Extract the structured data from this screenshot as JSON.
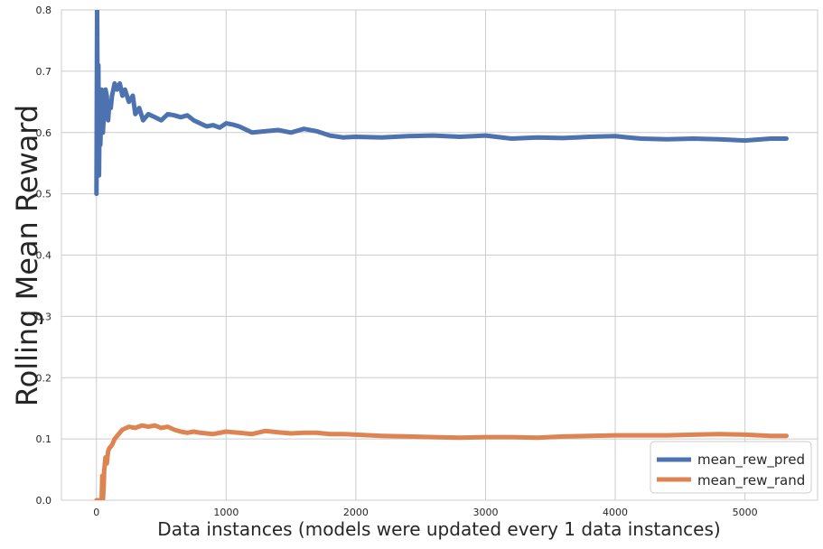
{
  "chart_data": {
    "type": "line",
    "title": "",
    "xlabel": "Data instances (models were updated every 1 data instances)",
    "ylabel": "Rolling Mean Reward",
    "xlim": [
      -270,
      5560
    ],
    "ylim": [
      0.0,
      0.8
    ],
    "x_ticks": [
      0,
      1000,
      2000,
      3000,
      4000,
      5000
    ],
    "y_ticks": [
      0.0,
      0.1,
      0.2,
      0.3,
      0.4,
      0.5,
      0.6,
      0.7,
      0.8
    ],
    "x_tick_labels": [
      "0",
      "1000",
      "2000",
      "3000",
      "4000",
      "5000"
    ],
    "y_tick_labels": [
      "0.0",
      "0.1",
      "0.2",
      "0.3",
      "0.4",
      "0.5",
      "0.6",
      "0.7",
      "0.8"
    ],
    "grid": true,
    "legend_position": "bottom-right",
    "series": [
      {
        "name": "mean_rew_pred",
        "color": "#4c72b0",
        "x": [
          0,
          5,
          10,
          15,
          20,
          25,
          30,
          40,
          50,
          60,
          70,
          80,
          90,
          100,
          110,
          120,
          140,
          160,
          180,
          200,
          220,
          250,
          280,
          300,
          330,
          360,
          400,
          450,
          500,
          550,
          600,
          650,
          700,
          750,
          800,
          850,
          900,
          950,
          1000,
          1050,
          1100,
          1150,
          1200,
          1300,
          1400,
          1500,
          1600,
          1700,
          1800,
          1900,
          2000,
          2200,
          2400,
          2600,
          2800,
          3000,
          3200,
          3400,
          3600,
          3800,
          4000,
          4100,
          4200,
          4400,
          4600,
          4800,
          5000,
          5200,
          5320
        ],
        "y": [
          0.5,
          0.82,
          0.55,
          0.71,
          0.53,
          0.66,
          0.58,
          0.67,
          0.6,
          0.64,
          0.67,
          0.66,
          0.62,
          0.65,
          0.64,
          0.66,
          0.68,
          0.67,
          0.68,
          0.66,
          0.67,
          0.65,
          0.66,
          0.63,
          0.64,
          0.62,
          0.63,
          0.625,
          0.62,
          0.63,
          0.628,
          0.625,
          0.628,
          0.62,
          0.615,
          0.61,
          0.612,
          0.608,
          0.615,
          0.613,
          0.61,
          0.605,
          0.6,
          0.602,
          0.604,
          0.6,
          0.606,
          0.602,
          0.595,
          0.592,
          0.593,
          0.592,
          0.594,
          0.595,
          0.593,
          0.595,
          0.59,
          0.592,
          0.591,
          0.593,
          0.594,
          0.592,
          0.59,
          0.589,
          0.59,
          0.589,
          0.587,
          0.59,
          0.59
        ]
      },
      {
        "name": "mean_rew_rand",
        "color": "#dd8452",
        "x": [
          0,
          20,
          40,
          45,
          50,
          55,
          60,
          70,
          80,
          90,
          100,
          120,
          140,
          160,
          180,
          200,
          250,
          300,
          350,
          400,
          450,
          500,
          550,
          600,
          650,
          700,
          750,
          800,
          900,
          1000,
          1100,
          1200,
          1300,
          1400,
          1500,
          1600,
          1700,
          1800,
          1900,
          2000,
          2200,
          2400,
          2600,
          2800,
          3000,
          3200,
          3400,
          3600,
          3800,
          4000,
          4200,
          4400,
          4600,
          4800,
          5000,
          5200,
          5320
        ],
        "y": [
          0.0,
          0.0,
          0.0,
          0.04,
          0.0,
          0.02,
          0.05,
          0.07,
          0.06,
          0.08,
          0.085,
          0.09,
          0.1,
          0.105,
          0.11,
          0.115,
          0.12,
          0.118,
          0.122,
          0.12,
          0.122,
          0.118,
          0.12,
          0.115,
          0.112,
          0.11,
          0.112,
          0.11,
          0.108,
          0.112,
          0.11,
          0.108,
          0.113,
          0.111,
          0.109,
          0.11,
          0.11,
          0.108,
          0.108,
          0.107,
          0.105,
          0.104,
          0.103,
          0.102,
          0.103,
          0.103,
          0.102,
          0.104,
          0.105,
          0.106,
          0.106,
          0.106,
          0.107,
          0.108,
          0.107,
          0.105,
          0.105
        ]
      }
    ]
  }
}
